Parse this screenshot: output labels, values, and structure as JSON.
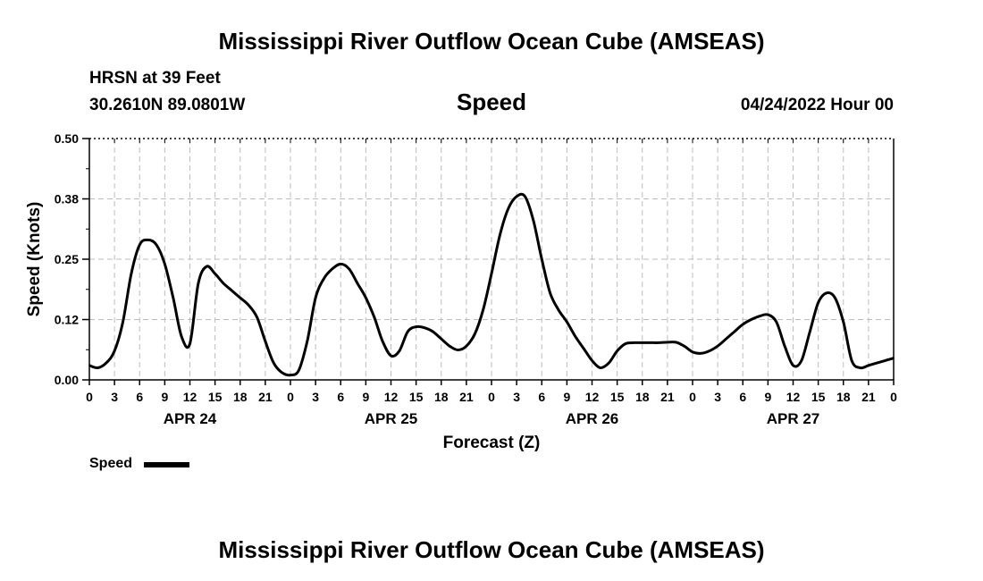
{
  "header": {
    "title": "Mississippi River Outflow Ocean Cube (AMSEAS)",
    "station": "HRSN at 39 Feet",
    "location": "30.2610N  89.0801W",
    "variable": "Speed",
    "datetime": "04/24/2022 Hour 00"
  },
  "footer": {
    "title": "Mississippi River Outflow Ocean Cube (AMSEAS)"
  },
  "legend": {
    "label": "Speed"
  },
  "chart_data": {
    "type": "line",
    "title": "Speed",
    "xlabel": "Forecast (Z)",
    "ylabel": "Speed (Knots)",
    "ylim": [
      0,
      0.5
    ],
    "xlim": [
      0,
      96
    ],
    "yticks": [
      0,
      0.125,
      0.25,
      0.375,
      0.5
    ],
    "ytick_labels": [
      "0.00",
      "0.12",
      "0.25",
      "0.38",
      "0.50"
    ],
    "xtick_hours": [
      0,
      3,
      6,
      9,
      12,
      15,
      18,
      21,
      24,
      27,
      30,
      33,
      36,
      39,
      42,
      45,
      48,
      51,
      54,
      57,
      60,
      63,
      66,
      69,
      72,
      75,
      78,
      81,
      84,
      87,
      90,
      93,
      96
    ],
    "xtick_labels": [
      "0",
      "3",
      "6",
      "9",
      "12",
      "15",
      "18",
      "21",
      "0",
      "3",
      "6",
      "9",
      "12",
      "15",
      "18",
      "21",
      "0",
      "3",
      "6",
      "9",
      "12",
      "15",
      "18",
      "21",
      "0",
      "3",
      "6",
      "9",
      "12",
      "15",
      "18",
      "21",
      "0"
    ],
    "day_labels": [
      {
        "label": "APR 24",
        "hour": 12
      },
      {
        "label": "APR 25",
        "hour": 36
      },
      {
        "label": "APR 26",
        "hour": 60
      },
      {
        "label": "APR 27",
        "hour": 84
      }
    ],
    "grid": true,
    "series": [
      {
        "name": "Speed",
        "x": [
          0,
          1,
          2,
          3,
          4,
          5,
          6,
          7,
          8,
          9,
          10,
          11,
          12,
          13,
          14,
          15,
          16,
          17,
          18,
          19,
          20,
          21,
          22,
          23,
          24,
          25,
          26,
          27,
          28,
          29,
          30,
          31,
          32,
          33,
          34,
          35,
          36,
          37,
          38,
          39,
          40,
          41,
          42,
          43,
          44,
          45,
          46,
          47,
          48,
          49,
          50,
          51,
          52,
          53,
          54,
          55,
          56,
          57,
          58,
          59,
          60,
          61,
          62,
          63,
          64,
          65,
          66,
          67,
          68,
          69,
          70,
          71,
          72,
          73,
          74,
          75,
          76,
          77,
          78,
          79,
          80,
          81,
          82,
          83,
          84,
          85,
          86,
          87,
          88,
          89,
          90,
          91,
          92,
          93,
          94,
          95,
          96
        ],
        "values": [
          0.03,
          0.025,
          0.035,
          0.06,
          0.12,
          0.22,
          0.28,
          0.29,
          0.28,
          0.24,
          0.17,
          0.09,
          0.075,
          0.2,
          0.235,
          0.22,
          0.2,
          0.185,
          0.17,
          0.155,
          0.13,
          0.08,
          0.035,
          0.015,
          0.01,
          0.02,
          0.08,
          0.17,
          0.21,
          0.23,
          0.24,
          0.23,
          0.2,
          0.17,
          0.13,
          0.08,
          0.05,
          0.06,
          0.1,
          0.11,
          0.108,
          0.1,
          0.085,
          0.07,
          0.062,
          0.07,
          0.095,
          0.145,
          0.22,
          0.3,
          0.355,
          0.38,
          0.38,
          0.33,
          0.25,
          0.18,
          0.145,
          0.12,
          0.09,
          0.065,
          0.04,
          0.025,
          0.035,
          0.06,
          0.075,
          0.077,
          0.077,
          0.077,
          0.077,
          0.078,
          0.078,
          0.07,
          0.058,
          0.055,
          0.06,
          0.07,
          0.085,
          0.1,
          0.115,
          0.125,
          0.132,
          0.135,
          0.12,
          0.07,
          0.03,
          0.04,
          0.1,
          0.16,
          0.18,
          0.17,
          0.12,
          0.04,
          0.025,
          0.03,
          0.035,
          0.04,
          0.045
        ]
      }
    ]
  }
}
